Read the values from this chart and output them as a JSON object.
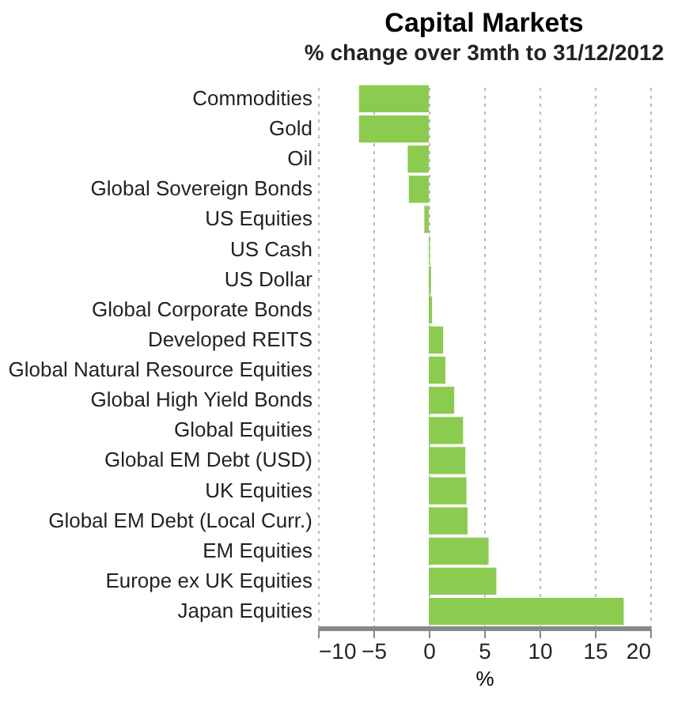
{
  "chart_data": {
    "type": "bar",
    "orientation": "horizontal",
    "title": "Capital Markets",
    "subtitle": "% change over 3mth to 31/12/2012",
    "xlabel": "%",
    "categories": [
      "Commodities",
      "Gold",
      "Oil",
      "Global Sovereign Bonds",
      "US Equities",
      "US Cash",
      "US Dollar",
      "Global Corporate Bonds",
      "Developed REITS",
      "Global Natural Resource Equities",
      "Global High Yield Bonds",
      "Global Equities",
      "Global EM Debt (USD)",
      "UK Equities",
      "Global EM Debt (Local Curr.)",
      "EM Equities",
      "Europe ex UK Equities",
      "Japan Equities"
    ],
    "series": [
      {
        "color": "#8bcb50",
        "values": [
          -6.3,
          -6.3,
          -1.9,
          -1.8,
          -0.4,
          0.1,
          0.2,
          0.3,
          1.3,
          1.5,
          2.3,
          3.1,
          3.3,
          3.4,
          3.5,
          5.4,
          6.1,
          17.6
        ]
      }
    ],
    "xlim": [
      -10,
      20
    ],
    "xticks": [
      -10,
      -5,
      0,
      5,
      10,
      15,
      20
    ],
    "grid": "x"
  }
}
